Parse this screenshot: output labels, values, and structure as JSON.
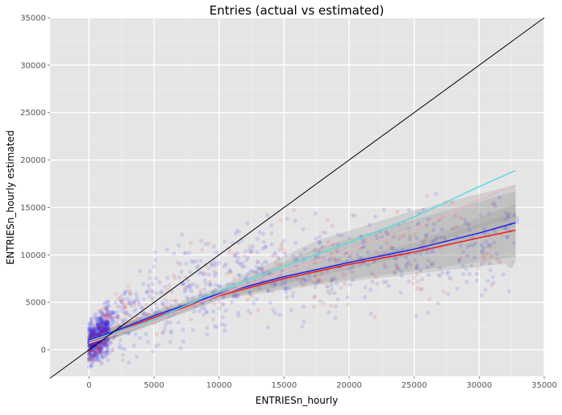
{
  "chart_data": {
    "type": "scatter",
    "title": "Entries (actual vs estimated)",
    "xlabel": "ENTRIESn_hourly",
    "ylabel": "ENTRIESn_hourly estimated",
    "xlim": [
      -3000,
      35000
    ],
    "ylim": [
      -2800,
      35000
    ],
    "x_ticks": [
      0,
      5000,
      10000,
      15000,
      20000,
      25000,
      30000,
      35000
    ],
    "y_ticks": [
      0,
      5000,
      10000,
      15000,
      20000,
      25000,
      30000,
      35000
    ],
    "x_tick_labels": [
      "0",
      "5000",
      "10000",
      "15000",
      "20000",
      "25000",
      "30000",
      "35000"
    ],
    "y_tick_labels": [
      "0",
      "5000",
      "10000",
      "15000",
      "20000",
      "25000",
      "30000",
      "35000"
    ],
    "grid": true,
    "background": "#e5e5e5",
    "reference_line": {
      "x": [
        -3000,
        35000
      ],
      "y": [
        -3000,
        35000
      ],
      "color": "#000000"
    },
    "series": [
      {
        "color": "#2020ee",
        "fit": {
          "x": [
            0,
            5000,
            10000,
            15000,
            20000,
            25000,
            30000,
            32800
          ],
          "y": [
            900,
            3600,
            5900,
            7700,
            9200,
            10600,
            12300,
            13400
          ]
        },
        "band": {
          "x": [
            0,
            10000,
            17500,
            25000,
            32800
          ],
          "lower": [
            300,
            5500,
            7000,
            8300,
            9800
          ],
          "upper": [
            1500,
            6300,
            8600,
            11300,
            15400
          ]
        }
      },
      {
        "color": "#ee2020",
        "fit": {
          "x": [
            0,
            5000,
            10000,
            15000,
            20000,
            25000,
            30000,
            32800
          ],
          "y": [
            800,
            3400,
            5700,
            7500,
            9000,
            10300,
            11800,
            12600
          ]
        },
        "band": {
          "x": [
            0,
            10000,
            17500,
            25000,
            32800
          ],
          "lower": [
            200,
            5300,
            6800,
            8000,
            9200
          ],
          "upper": [
            1400,
            6100,
            8400,
            10900,
            14600
          ]
        }
      },
      {
        "color": "#5fd9e0",
        "fit": {
          "x": [
            0,
            5000,
            10000,
            15000,
            20000,
            25000,
            30000,
            32800
          ],
          "y": [
            900,
            3200,
            6200,
            8800,
            11300,
            14000,
            17200,
            18900
          ]
        },
        "band": {
          "x": [
            0,
            10000,
            17500,
            25000,
            32800
          ],
          "lower": [
            300,
            5600,
            8200,
            10800,
            14000
          ],
          "upper": [
            1500,
            6600,
            11500,
            14700,
            17400
          ]
        }
      },
      {
        "color": "#e7b8c4",
        "fit": {
          "x": [
            0,
            5000,
            10000,
            15000,
            20000,
            25000,
            30000,
            32800
          ],
          "y": [
            700,
            3000,
            5800,
            8200,
            10500,
            12800,
            15800,
            17400
          ]
        },
        "band": {
          "x": [
            0,
            10000,
            17500,
            25000,
            32800
          ],
          "lower": [
            200,
            5200,
            7700,
            10000,
            13000
          ],
          "upper": [
            1300,
            6300,
            10700,
            13700,
            16700
          ]
        }
      }
    ]
  }
}
